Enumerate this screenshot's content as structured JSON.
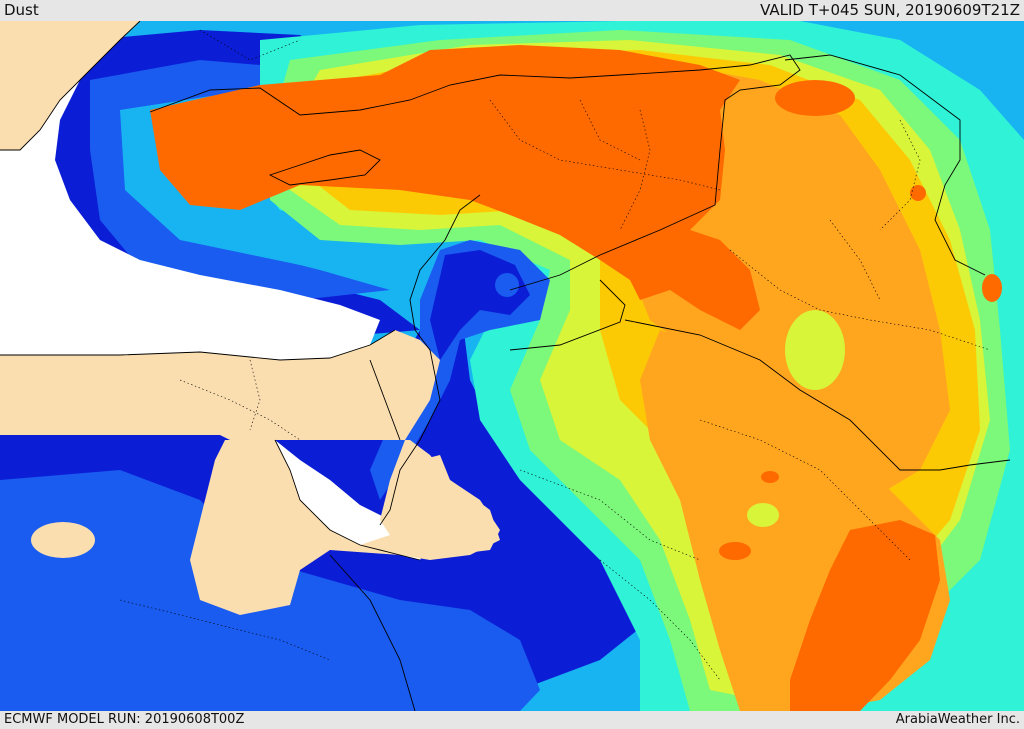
{
  "header": {
    "title": "Dust",
    "valid_time": "VALID T+045 SUN, 20190609T21Z"
  },
  "footer": {
    "model_run": "ECMWF MODEL RUN: 20190608T00Z",
    "credit": "ArabiaWeather Inc."
  },
  "map": {
    "field": "Dust",
    "colors": {
      "sea": "#ffffff",
      "land_no_dust": "#fbdeb0",
      "dust_level_1": "#0b1ed6",
      "dust_level_2": "#1a5bf0",
      "dust_level_3": "#18b4f2",
      "dust_level_4": "#2ff2d6",
      "dust_level_5": "#7cf87a",
      "dust_level_6": "#d8f53a",
      "dust_level_7": "#fcca05",
      "dust_level_8": "#ffa51e",
      "dust_level_9": "#ff6a00",
      "borders": "#000000"
    }
  }
}
